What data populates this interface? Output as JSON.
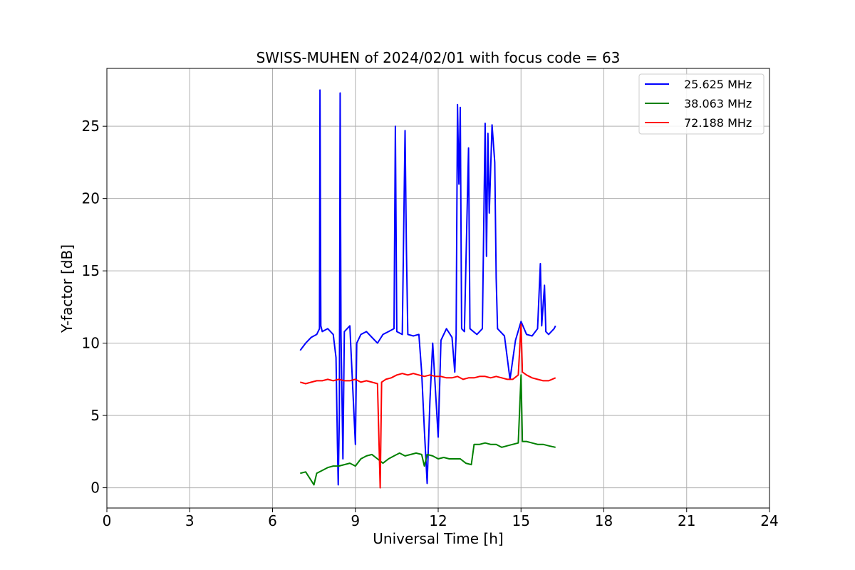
{
  "chart_data": {
    "type": "line",
    "title": "SWISS-MUHEN of 2024/02/01 with focus code = 63",
    "xlabel": "Universal Time [h]",
    "ylabel": "Y-factor [dB]",
    "xlim": [
      0,
      24
    ],
    "ylim": [
      -1.4,
      29
    ],
    "xticks": [
      0,
      3,
      6,
      9,
      12,
      15,
      18,
      21,
      24
    ],
    "yticks": [
      0,
      5,
      10,
      15,
      20,
      25
    ],
    "grid": true,
    "legend_position": "top-right",
    "series": [
      {
        "name": "25.625 MHz",
        "color": "#0000ff",
        "points": [
          [
            7.0,
            9.5
          ],
          [
            7.2,
            10.0
          ],
          [
            7.4,
            10.4
          ],
          [
            7.6,
            10.6
          ],
          [
            7.7,
            11.0
          ],
          [
            7.72,
            27.5
          ],
          [
            7.75,
            11.2
          ],
          [
            7.8,
            10.8
          ],
          [
            8.0,
            11.0
          ],
          [
            8.2,
            10.6
          ],
          [
            8.3,
            9.0
          ],
          [
            8.35,
            3.0
          ],
          [
            8.38,
            0.2
          ],
          [
            8.42,
            5.0
          ],
          [
            8.45,
            27.3
          ],
          [
            8.48,
            10.6
          ],
          [
            8.55,
            2.0
          ],
          [
            8.6,
            10.8
          ],
          [
            8.8,
            11.2
          ],
          [
            9.0,
            3.0
          ],
          [
            9.05,
            10.0
          ],
          [
            9.2,
            10.6
          ],
          [
            9.4,
            10.8
          ],
          [
            9.6,
            10.4
          ],
          [
            9.8,
            10.0
          ],
          [
            10.0,
            10.6
          ],
          [
            10.2,
            10.8
          ],
          [
            10.4,
            11.0
          ],
          [
            10.45,
            25.0
          ],
          [
            10.5,
            10.8
          ],
          [
            10.7,
            10.6
          ],
          [
            10.8,
            24.7
          ],
          [
            10.85,
            16.5
          ],
          [
            10.9,
            10.6
          ],
          [
            11.1,
            10.5
          ],
          [
            11.3,
            10.6
          ],
          [
            11.4,
            8.0
          ],
          [
            11.5,
            4.0
          ],
          [
            11.6,
            0.3
          ],
          [
            11.7,
            6.0
          ],
          [
            11.8,
            10.0
          ],
          [
            12.0,
            3.5
          ],
          [
            12.1,
            10.2
          ],
          [
            12.3,
            11.0
          ],
          [
            12.5,
            10.4
          ],
          [
            12.6,
            8.0
          ],
          [
            12.65,
            10.6
          ],
          [
            12.7,
            26.5
          ],
          [
            12.75,
            21.0
          ],
          [
            12.8,
            26.3
          ],
          [
            12.85,
            11.0
          ],
          [
            12.95,
            10.8
          ],
          [
            13.1,
            23.5
          ],
          [
            13.15,
            11.0
          ],
          [
            13.4,
            10.6
          ],
          [
            13.6,
            11.0
          ],
          [
            13.7,
            25.2
          ],
          [
            13.75,
            16.0
          ],
          [
            13.8,
            24.5
          ],
          [
            13.85,
            19.0
          ],
          [
            13.95,
            25.1
          ],
          [
            14.05,
            22.5
          ],
          [
            14.1,
            14.5
          ],
          [
            14.15,
            11.0
          ],
          [
            14.4,
            10.5
          ],
          [
            14.6,
            7.5
          ],
          [
            14.8,
            10.2
          ],
          [
            15.0,
            11.5
          ],
          [
            15.2,
            10.6
          ],
          [
            15.4,
            10.5
          ],
          [
            15.6,
            11.0
          ],
          [
            15.7,
            15.5
          ],
          [
            15.75,
            11.2
          ],
          [
            15.85,
            14.0
          ],
          [
            15.9,
            10.8
          ],
          [
            16.0,
            10.6
          ],
          [
            16.2,
            11.0
          ],
          [
            16.25,
            11.2
          ]
        ]
      },
      {
        "name": "38.063 MHz",
        "color": "#008000",
        "points": [
          [
            7.0,
            1.0
          ],
          [
            7.2,
            1.1
          ],
          [
            7.4,
            0.5
          ],
          [
            7.5,
            0.2
          ],
          [
            7.6,
            1.0
          ],
          [
            7.8,
            1.2
          ],
          [
            8.0,
            1.4
          ],
          [
            8.2,
            1.5
          ],
          [
            8.4,
            1.5
          ],
          [
            8.6,
            1.6
          ],
          [
            8.8,
            1.7
          ],
          [
            9.0,
            1.5
          ],
          [
            9.2,
            2.0
          ],
          [
            9.4,
            2.2
          ],
          [
            9.6,
            2.3
          ],
          [
            9.8,
            2.0
          ],
          [
            10.0,
            1.7
          ],
          [
            10.2,
            2.0
          ],
          [
            10.4,
            2.2
          ],
          [
            10.6,
            2.4
          ],
          [
            10.8,
            2.2
          ],
          [
            11.0,
            2.3
          ],
          [
            11.2,
            2.4
          ],
          [
            11.4,
            2.3
          ],
          [
            11.5,
            1.5
          ],
          [
            11.6,
            2.3
          ],
          [
            11.8,
            2.2
          ],
          [
            12.0,
            2.0
          ],
          [
            12.2,
            2.1
          ],
          [
            12.4,
            2.0
          ],
          [
            12.6,
            2.0
          ],
          [
            12.8,
            2.0
          ],
          [
            13.0,
            1.7
          ],
          [
            13.2,
            1.6
          ],
          [
            13.3,
            3.0
          ],
          [
            13.5,
            3.0
          ],
          [
            13.7,
            3.1
          ],
          [
            13.9,
            3.0
          ],
          [
            14.1,
            3.0
          ],
          [
            14.3,
            2.8
          ],
          [
            14.5,
            2.9
          ],
          [
            14.7,
            3.0
          ],
          [
            14.9,
            3.1
          ],
          [
            15.0,
            7.8
          ],
          [
            15.05,
            3.2
          ],
          [
            15.2,
            3.2
          ],
          [
            15.4,
            3.1
          ],
          [
            15.6,
            3.0
          ],
          [
            15.8,
            3.0
          ],
          [
            16.0,
            2.9
          ],
          [
            16.25,
            2.8
          ]
        ]
      },
      {
        "name": "72.188 MHz",
        "color": "#ff0000",
        "points": [
          [
            7.0,
            7.3
          ],
          [
            7.2,
            7.2
          ],
          [
            7.4,
            7.3
          ],
          [
            7.6,
            7.4
          ],
          [
            7.8,
            7.4
          ],
          [
            8.0,
            7.5
          ],
          [
            8.2,
            7.4
          ],
          [
            8.4,
            7.5
          ],
          [
            8.6,
            7.4
          ],
          [
            8.8,
            7.4
          ],
          [
            9.0,
            7.5
          ],
          [
            9.2,
            7.3
          ],
          [
            9.4,
            7.4
          ],
          [
            9.6,
            7.3
          ],
          [
            9.8,
            7.2
          ],
          [
            9.9,
            0.0
          ],
          [
            9.95,
            7.3
          ],
          [
            10.1,
            7.5
          ],
          [
            10.3,
            7.6
          ],
          [
            10.5,
            7.8
          ],
          [
            10.7,
            7.9
          ],
          [
            10.9,
            7.8
          ],
          [
            11.1,
            7.9
          ],
          [
            11.3,
            7.8
          ],
          [
            11.5,
            7.7
          ],
          [
            11.7,
            7.8
          ],
          [
            11.9,
            7.7
          ],
          [
            12.1,
            7.7
          ],
          [
            12.3,
            7.6
          ],
          [
            12.5,
            7.6
          ],
          [
            12.7,
            7.7
          ],
          [
            12.9,
            7.5
          ],
          [
            13.1,
            7.6
          ],
          [
            13.3,
            7.6
          ],
          [
            13.5,
            7.7
          ],
          [
            13.7,
            7.7
          ],
          [
            13.9,
            7.6
          ],
          [
            14.1,
            7.7
          ],
          [
            14.3,
            7.6
          ],
          [
            14.5,
            7.5
          ],
          [
            14.7,
            7.5
          ],
          [
            14.9,
            7.8
          ],
          [
            15.0,
            11.3
          ],
          [
            15.05,
            8.0
          ],
          [
            15.2,
            7.8
          ],
          [
            15.4,
            7.6
          ],
          [
            15.6,
            7.5
          ],
          [
            15.8,
            7.4
          ],
          [
            16.0,
            7.4
          ],
          [
            16.25,
            7.6
          ]
        ]
      }
    ]
  }
}
